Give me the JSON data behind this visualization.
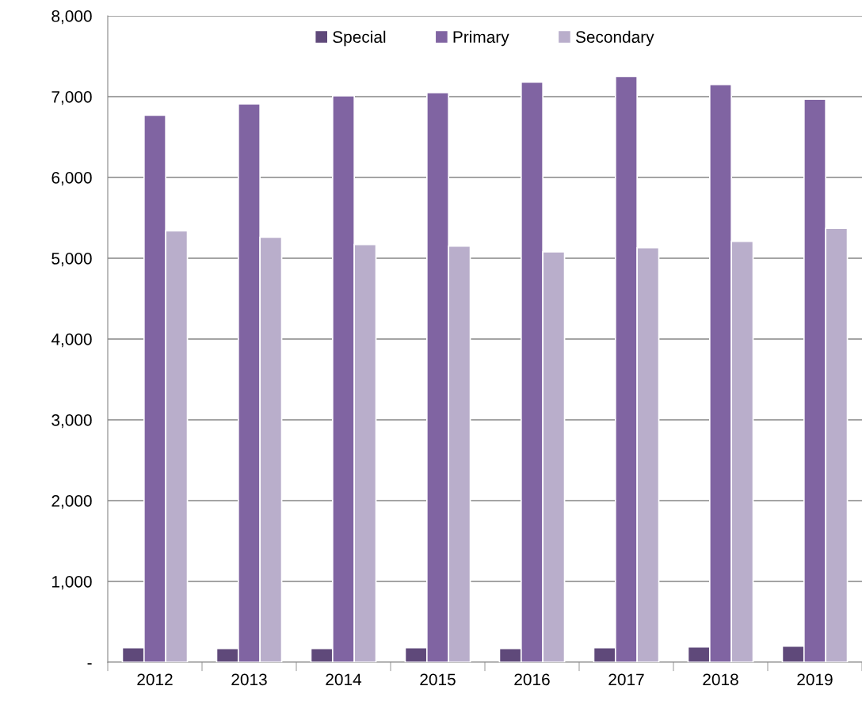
{
  "chart_data": {
    "type": "bar",
    "categories": [
      "2012",
      "2013",
      "2014",
      "2015",
      "2016",
      "2017",
      "2018",
      "2019"
    ],
    "series": [
      {
        "name": "Special",
        "color": "#5f497a",
        "values": [
          180,
          170,
          170,
          180,
          170,
          180,
          190,
          200
        ]
      },
      {
        "name": "Primary",
        "color": "#8064a2",
        "values": [
          6770,
          6910,
          7010,
          7050,
          7180,
          7250,
          7150,
          6970
        ]
      },
      {
        "name": "Secondary",
        "color": "#b9aecb",
        "values": [
          5340,
          5260,
          5170,
          5150,
          5080,
          5130,
          5210,
          5370
        ]
      }
    ],
    "ylim": [
      0,
      8000
    ],
    "yticks": [
      {
        "value": 0,
        "label": "-"
      },
      {
        "value": 1000,
        "label": "1,000"
      },
      {
        "value": 2000,
        "label": "2,000"
      },
      {
        "value": 3000,
        "label": "3,000"
      },
      {
        "value": 4000,
        "label": "4,000"
      },
      {
        "value": 5000,
        "label": "5,000"
      },
      {
        "value": 6000,
        "label": "6,000"
      },
      {
        "value": 7000,
        "label": "7,000"
      },
      {
        "value": 8000,
        "label": "8,000"
      }
    ],
    "grid": "y",
    "legend": "top"
  }
}
